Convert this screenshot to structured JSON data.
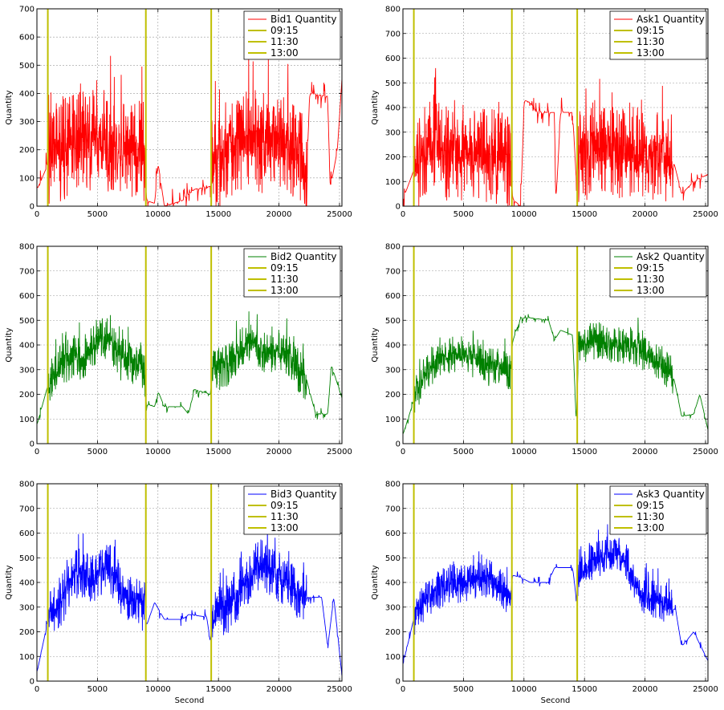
{
  "vline_color": "#bfbf00",
  "chart_data": [
    {
      "type": "line",
      "x_range": [
        0,
        25200
      ],
      "ylim": [
        0,
        700
      ],
      "xlabel": "",
      "ylabel": "Quantity",
      "grid": true,
      "legend_position": "top-right",
      "x_ticks": [
        0,
        5000,
        10000,
        15000,
        20000,
        25000
      ],
      "y_ticks": [
        0,
        100,
        200,
        300,
        400,
        500,
        600,
        700
      ],
      "series": [
        {
          "name": "Bid1 Quantity",
          "color": "#ff0000",
          "style": "noisy",
          "amp": 140,
          "y0": 80,
          "points": [
            [
              0,
              60
            ],
            [
              900,
              150
            ],
            [
              2000,
              200
            ],
            [
              3000,
              220
            ],
            [
              4000,
              230
            ],
            [
              5000,
              250
            ],
            [
              6000,
              230
            ],
            [
              7000,
              220
            ],
            [
              8000,
              210
            ],
            [
              8900,
              190
            ],
            [
              9000,
              20
            ],
            [
              9700,
              10
            ],
            [
              10000,
              150
            ],
            [
              10500,
              0
            ],
            [
              12000,
              20
            ],
            [
              13000,
              60
            ],
            [
              14300,
              70
            ],
            [
              14500,
              150
            ],
            [
              16000,
              210
            ],
            [
              17500,
              250
            ],
            [
              19000,
              220
            ],
            [
              20500,
              210
            ],
            [
              21500,
              200
            ],
            [
              22300,
              120
            ],
            [
              22500,
              400
            ],
            [
              24000,
              390
            ],
            [
              24200,
              60
            ],
            [
              24800,
              200
            ],
            [
              25200,
              470
            ]
          ]
        }
      ],
      "vlines": [
        {
          "name": "09:15",
          "x": 900
        },
        {
          "name": "11:30",
          "x": 9000
        },
        {
          "name": "13:00",
          "x": 14400
        }
      ]
    },
    {
      "type": "line",
      "x_range": [
        0,
        25200
      ],
      "ylim": [
        0,
        800
      ],
      "xlabel": "",
      "ylabel": "Quantity",
      "grid": true,
      "legend_position": "top-right",
      "x_ticks": [
        0,
        5000,
        10000,
        15000,
        20000,
        25000
      ],
      "y_ticks": [
        0,
        100,
        200,
        300,
        400,
        500,
        600,
        700,
        800
      ],
      "series": [
        {
          "name": "Ask1 Quantity",
          "color": "#ff0000",
          "style": "noisy",
          "amp": 150,
          "y0": 40,
          "points": [
            [
              0,
              30
            ],
            [
              900,
              150
            ],
            [
              2000,
              240
            ],
            [
              3000,
              230
            ],
            [
              4000,
              210
            ],
            [
              5000,
              220
            ],
            [
              6000,
              210
            ],
            [
              7000,
              200
            ],
            [
              8000,
              200
            ],
            [
              8900,
              190
            ],
            [
              9000,
              30
            ],
            [
              9700,
              0
            ],
            [
              10000,
              430
            ],
            [
              10500,
              420
            ],
            [
              11000,
              380
            ],
            [
              12500,
              380
            ],
            [
              12600,
              0
            ],
            [
              13000,
              380
            ],
            [
              14000,
              380
            ],
            [
              14300,
              100
            ],
            [
              14500,
              200
            ],
            [
              16000,
              240
            ],
            [
              17500,
              230
            ],
            [
              19000,
              210
            ],
            [
              20500,
              210
            ],
            [
              21500,
              190
            ],
            [
              22300,
              190
            ],
            [
              23000,
              50
            ],
            [
              24000,
              100
            ],
            [
              25200,
              130
            ]
          ]
        }
      ],
      "vlines": [
        {
          "name": "09:15",
          "x": 900
        },
        {
          "name": "11:30",
          "x": 9000
        },
        {
          "name": "13:00",
          "x": 14400
        }
      ]
    },
    {
      "type": "line",
      "x_range": [
        0,
        25200
      ],
      "ylim": [
        0,
        800
      ],
      "xlabel": "",
      "ylabel": "Quantity",
      "grid": true,
      "legend_position": "top-right",
      "x_ticks": [
        0,
        5000,
        10000,
        15000,
        20000,
        25000
      ],
      "y_ticks": [
        0,
        100,
        200,
        300,
        400,
        500,
        600,
        700,
        800
      ],
      "series": [
        {
          "name": "Bid2 Quantity",
          "color": "#008000",
          "style": "noisy",
          "amp": 70,
          "y0": 80,
          "points": [
            [
              0,
              80
            ],
            [
              900,
              240
            ],
            [
              2000,
              320
            ],
            [
              3000,
              360
            ],
            [
              4000,
              340
            ],
            [
              5000,
              420
            ],
            [
              6000,
              420
            ],
            [
              7000,
              340
            ],
            [
              8000,
              330
            ],
            [
              8900,
              280
            ],
            [
              9000,
              160
            ],
            [
              9700,
              150
            ],
            [
              10000,
              210
            ],
            [
              10500,
              150
            ],
            [
              12000,
              150
            ],
            [
              12500,
              120
            ],
            [
              13000,
              220
            ],
            [
              14300,
              200
            ],
            [
              14500,
              290
            ],
            [
              16000,
              330
            ],
            [
              17500,
              420
            ],
            [
              19000,
              360
            ],
            [
              20500,
              380
            ],
            [
              21500,
              300
            ],
            [
              22300,
              250
            ],
            [
              23000,
              120
            ],
            [
              24000,
              120
            ],
            [
              24300,
              320
            ],
            [
              25200,
              180
            ]
          ]
        }
      ],
      "vlines": [
        {
          "name": "09:15",
          "x": 900
        },
        {
          "name": "11:30",
          "x": 9000
        },
        {
          "name": "13:00",
          "x": 14400
        }
      ]
    },
    {
      "type": "line",
      "x_range": [
        0,
        25200
      ],
      "ylim": [
        0,
        800
      ],
      "xlabel": "",
      "ylabel": "Quantity",
      "grid": true,
      "legend_position": "top-right",
      "x_ticks": [
        0,
        5000,
        10000,
        15000,
        20000,
        25000
      ],
      "y_ticks": [
        0,
        100,
        200,
        300,
        400,
        500,
        600,
        700,
        800
      ],
      "series": [
        {
          "name": "Ask2 Quantity",
          "color": "#008000",
          "style": "noisy",
          "amp": 60,
          "y0": 40,
          "points": [
            [
              0,
              40
            ],
            [
              900,
              180
            ],
            [
              2000,
              300
            ],
            [
              3000,
              340
            ],
            [
              4000,
              360
            ],
            [
              5000,
              360
            ],
            [
              6000,
              340
            ],
            [
              7000,
              310
            ],
            [
              8000,
              320
            ],
            [
              8900,
              280
            ],
            [
              9000,
              410
            ],
            [
              9700,
              510
            ],
            [
              10500,
              510
            ],
            [
              12000,
              500
            ],
            [
              12500,
              420
            ],
            [
              13000,
              460
            ],
            [
              14000,
              440
            ],
            [
              14300,
              80
            ],
            [
              14500,
              400
            ],
            [
              16000,
              420
            ],
            [
              17500,
              400
            ],
            [
              19000,
              400
            ],
            [
              20500,
              340
            ],
            [
              21500,
              320
            ],
            [
              22300,
              280
            ],
            [
              23000,
              110
            ],
            [
              24000,
              120
            ],
            [
              24500,
              200
            ],
            [
              25200,
              50
            ]
          ]
        }
      ],
      "vlines": [
        {
          "name": "09:15",
          "x": 900
        },
        {
          "name": "11:30",
          "x": 9000
        },
        {
          "name": "13:00",
          "x": 14400
        }
      ]
    },
    {
      "type": "line",
      "x_range": [
        0,
        25200
      ],
      "ylim": [
        0,
        800
      ],
      "xlabel": "Second",
      "ylabel": "Quantity",
      "grid": true,
      "legend_position": "top-right",
      "x_ticks": [
        0,
        5000,
        10000,
        15000,
        20000,
        25000
      ],
      "y_ticks": [
        0,
        100,
        200,
        300,
        400,
        500,
        600,
        700,
        800
      ],
      "series": [
        {
          "name": "Bid3 Quantity",
          "color": "#0000ff",
          "style": "noisy",
          "amp": 80,
          "y0": 40,
          "points": [
            [
              0,
              40
            ],
            [
              900,
              250
            ],
            [
              2000,
              320
            ],
            [
              3000,
              440
            ],
            [
              4000,
              420
            ],
            [
              5000,
              420
            ],
            [
              6000,
              460
            ],
            [
              7000,
              360
            ],
            [
              8000,
              340
            ],
            [
              8900,
              300
            ],
            [
              9000,
              220
            ],
            [
              9700,
              320
            ],
            [
              10500,
              250
            ],
            [
              12000,
              250
            ],
            [
              12500,
              270
            ],
            [
              14000,
              260
            ],
            [
              14300,
              160
            ],
            [
              14500,
              270
            ],
            [
              16000,
              300
            ],
            [
              17500,
              420
            ],
            [
              18500,
              480
            ],
            [
              20000,
              420
            ],
            [
              21500,
              360
            ],
            [
              22300,
              340
            ],
            [
              23500,
              340
            ],
            [
              24000,
              140
            ],
            [
              24500,
              340
            ],
            [
              25200,
              10
            ]
          ]
        }
      ],
      "vlines": [
        {
          "name": "09:15",
          "x": 900
        },
        {
          "name": "11:30",
          "x": 9000
        },
        {
          "name": "13:00",
          "x": 14400
        }
      ]
    },
    {
      "type": "line",
      "x_range": [
        0,
        25200
      ],
      "ylim": [
        0,
        800
      ],
      "xlabel": "Second",
      "ylabel": "Quantity",
      "grid": true,
      "legend_position": "top-right",
      "x_ticks": [
        0,
        5000,
        10000,
        15000,
        20000,
        25000
      ],
      "y_ticks": [
        0,
        100,
        200,
        300,
        400,
        500,
        600,
        700,
        800
      ],
      "series": [
        {
          "name": "Ask3 Quantity",
          "color": "#0000ff",
          "style": "noisy",
          "amp": 60,
          "y0": 70,
          "points": [
            [
              0,
              70
            ],
            [
              900,
              260
            ],
            [
              2000,
              340
            ],
            [
              3000,
              370
            ],
            [
              4000,
              400
            ],
            [
              5000,
              390
            ],
            [
              6000,
              400
            ],
            [
              7000,
              420
            ],
            [
              8000,
              380
            ],
            [
              8900,
              330
            ],
            [
              9000,
              430
            ],
            [
              9700,
              420
            ],
            [
              10500,
              400
            ],
            [
              12000,
              400
            ],
            [
              12500,
              460
            ],
            [
              14000,
              460
            ],
            [
              14300,
              330
            ],
            [
              14500,
              420
            ],
            [
              16000,
              500
            ],
            [
              17500,
              520
            ],
            [
              18500,
              480
            ],
            [
              19500,
              360
            ],
            [
              21000,
              330
            ],
            [
              22500,
              290
            ],
            [
              23000,
              140
            ],
            [
              24000,
              200
            ],
            [
              24800,
              120
            ],
            [
              25200,
              80
            ]
          ]
        }
      ],
      "vlines": [
        {
          "name": "09:15",
          "x": 900
        },
        {
          "name": "11:30",
          "x": 9000
        },
        {
          "name": "13:00",
          "x": 14400
        }
      ]
    }
  ]
}
